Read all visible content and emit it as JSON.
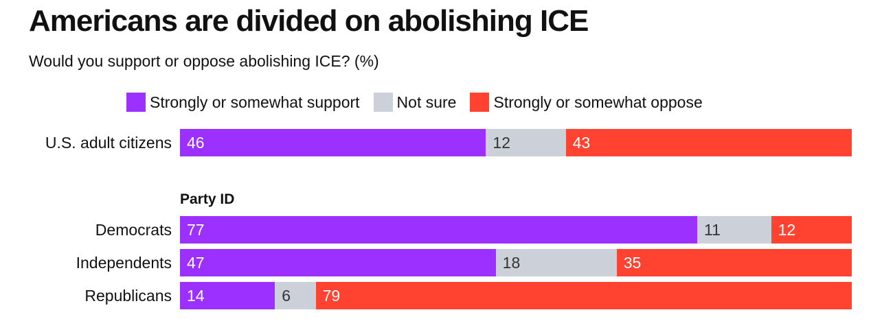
{
  "chart_data": {
    "type": "bar",
    "orientation": "horizontal",
    "stacked": true,
    "title": "Americans are divided on abolishing ICE",
    "subtitle": "Would you support or oppose abolishing ICE? (%)",
    "group_heading": "Party ID",
    "legend": [
      {
        "name": "Strongly or somewhat support",
        "color": "#9b30ff"
      },
      {
        "name": "Not sure",
        "color": "#ccd0d9"
      },
      {
        "name": "Strongly or somewhat oppose",
        "color": "#ff4330"
      }
    ],
    "categories": [
      "U.S. adult citizens",
      "Democrats",
      "Independents",
      "Republicans"
    ],
    "series": [
      {
        "name": "Strongly or somewhat support",
        "values": [
          46,
          77,
          47,
          14
        ]
      },
      {
        "name": "Not sure",
        "values": [
          12,
          11,
          18,
          6
        ]
      },
      {
        "name": "Strongly or somewhat oppose",
        "values": [
          43,
          12,
          35,
          79
        ]
      }
    ]
  }
}
